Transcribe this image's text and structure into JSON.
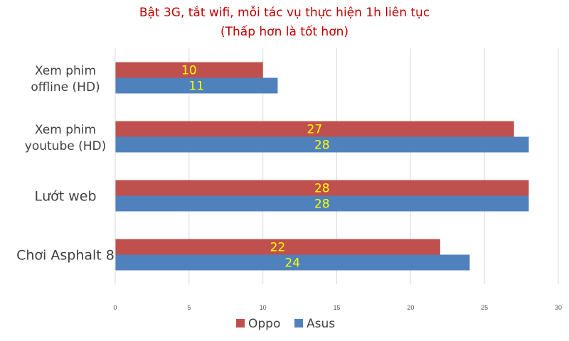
{
  "chart_data": {
    "type": "bar",
    "orientation": "horizontal",
    "title": "Bật 3G, tắt wifi, mỗi tác vụ thực hiện 1h liên tục",
    "subtitle": "(Thấp hơn là tốt hơn)",
    "categories": [
      [
        "Xem phim",
        "offline (HD)"
      ],
      [
        "Xem phim",
        "youtube (HD)"
      ],
      [
        "Lướt web"
      ],
      [
        "Chơi Asphalt 8"
      ]
    ],
    "series": [
      {
        "name": "Oppo",
        "color": "#c0504d",
        "values": [
          10,
          27,
          28,
          22
        ]
      },
      {
        "name": "Asus",
        "color": "#4f81bd",
        "values": [
          11,
          28,
          28,
          24
        ]
      }
    ],
    "xlim": [
      0,
      30
    ],
    "xticks": [
      0,
      5,
      10,
      15,
      20,
      25,
      30
    ],
    "grid": true,
    "legend_position": "bottom",
    "data_label_color": "#ffff00",
    "title_color": "#c00000"
  }
}
